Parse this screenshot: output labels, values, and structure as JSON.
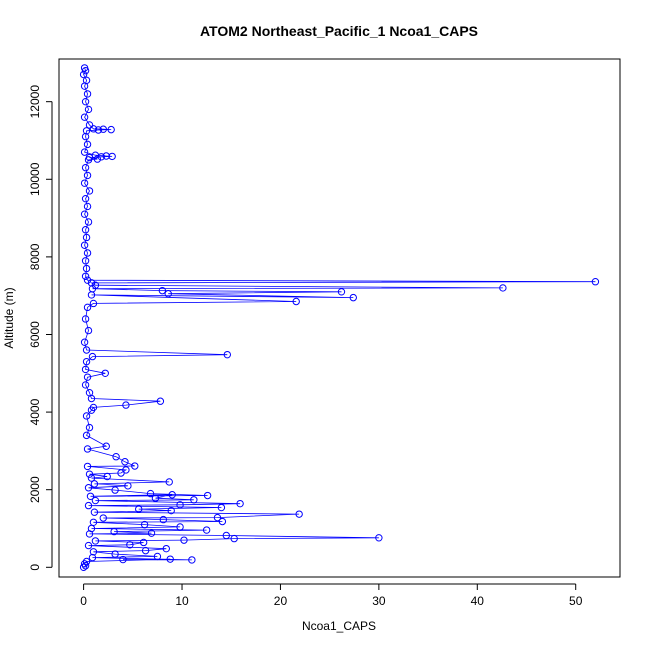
{
  "chart_data": {
    "type": "line",
    "title": "ATOM2 Northeast_Pacific_1 Ncoa1_CAPS",
    "xlabel": "Ncoa1_CAPS",
    "ylabel": "Altitude (m)",
    "xlim": [
      -2.5,
      54.5
    ],
    "ylim": [
      -250,
      13100
    ],
    "x_ticks": [
      0,
      10,
      20,
      30,
      40,
      50
    ],
    "y_ticks": [
      0,
      2000,
      4000,
      6000,
      8000,
      10000,
      12000
    ],
    "grid": false,
    "legend": "none",
    "series_color": "#0000ff",
    "marker": "open-circle",
    "series": [
      {
        "values": [
          [
            0.1,
            12870
          ],
          [
            0.2,
            12800
          ],
          [
            0.0,
            12700
          ],
          [
            0.3,
            12550
          ],
          [
            0.1,
            12400
          ],
          [
            0.4,
            12200
          ],
          [
            0.2,
            12000
          ],
          [
            0.5,
            11800
          ],
          [
            0.1,
            11600
          ],
          [
            0.6,
            11400
          ],
          [
            1.0,
            11300
          ],
          [
            2.0,
            11290
          ],
          [
            2.8,
            11280
          ],
          [
            1.5,
            11270
          ],
          [
            0.3,
            11250
          ],
          [
            0.2,
            11100
          ],
          [
            0.4,
            10900
          ],
          [
            0.1,
            10700
          ],
          [
            1.2,
            10620
          ],
          [
            2.3,
            10600
          ],
          [
            2.9,
            10590
          ],
          [
            1.8,
            10580
          ],
          [
            0.6,
            10560
          ],
          [
            1.4,
            10520
          ],
          [
            0.5,
            10500
          ],
          [
            0.2,
            10300
          ],
          [
            0.4,
            10100
          ],
          [
            0.1,
            9900
          ],
          [
            0.6,
            9700
          ],
          [
            0.2,
            9500
          ],
          [
            0.4,
            9300
          ],
          [
            0.1,
            9100
          ],
          [
            0.5,
            8900
          ],
          [
            0.2,
            8700
          ],
          [
            0.3,
            8500
          ],
          [
            0.1,
            8300
          ],
          [
            0.4,
            8100
          ],
          [
            0.2,
            7900
          ],
          [
            0.3,
            7700
          ],
          [
            0.2,
            7500
          ],
          [
            0.4,
            7400
          ],
          [
            52.0,
            7360
          ],
          [
            0.8,
            7330
          ],
          [
            1.2,
            7270
          ],
          [
            42.6,
            7200
          ],
          [
            0.9,
            7180
          ],
          [
            8.0,
            7130
          ],
          [
            26.2,
            7100
          ],
          [
            8.6,
            7050
          ],
          [
            27.4,
            6950
          ],
          [
            0.8,
            7020
          ],
          [
            21.6,
            6850
          ],
          [
            1.0,
            6800
          ],
          [
            0.4,
            6700
          ],
          [
            0.2,
            6400
          ],
          [
            0.5,
            6100
          ],
          [
            0.1,
            5800
          ],
          [
            0.3,
            5600
          ],
          [
            14.6,
            5480
          ],
          [
            0.9,
            5430
          ],
          [
            0.3,
            5300
          ],
          [
            0.2,
            5100
          ],
          [
            2.2,
            5000
          ],
          [
            0.4,
            4900
          ],
          [
            0.2,
            4700
          ],
          [
            0.6,
            4500
          ],
          [
            0.8,
            4350
          ],
          [
            7.8,
            4280
          ],
          [
            4.3,
            4180
          ],
          [
            1.0,
            4120
          ],
          [
            0.8,
            4050
          ],
          [
            0.3,
            3900
          ],
          [
            0.6,
            3600
          ],
          [
            0.3,
            3400
          ],
          [
            2.3,
            3120
          ],
          [
            0.4,
            3050
          ],
          [
            3.3,
            2850
          ],
          [
            4.2,
            2720
          ],
          [
            5.2,
            2610
          ],
          [
            0.4,
            2600
          ],
          [
            4.3,
            2510
          ],
          [
            3.8,
            2430
          ],
          [
            0.6,
            2400
          ],
          [
            2.4,
            2340
          ],
          [
            0.8,
            2300
          ],
          [
            8.7,
            2200
          ],
          [
            1.1,
            2150
          ],
          [
            4.5,
            2100
          ],
          [
            0.5,
            2050
          ],
          [
            3.2,
            1990
          ],
          [
            6.8,
            1900
          ],
          [
            12.6,
            1850
          ],
          [
            0.7,
            1830
          ],
          [
            9.0,
            1870
          ],
          [
            7.3,
            1780
          ],
          [
            11.2,
            1740
          ],
          [
            1.2,
            1720
          ],
          [
            15.9,
            1640
          ],
          [
            9.8,
            1610
          ],
          [
            0.5,
            1590
          ],
          [
            14.0,
            1540
          ],
          [
            5.6,
            1500
          ],
          [
            8.9,
            1460
          ],
          [
            1.1,
            1420
          ],
          [
            21.9,
            1370
          ],
          [
            13.6,
            1280
          ],
          [
            2.0,
            1270
          ],
          [
            8.1,
            1230
          ],
          [
            14.1,
            1180
          ],
          [
            1.0,
            1160
          ],
          [
            6.2,
            1100
          ],
          [
            9.8,
            1040
          ],
          [
            0.8,
            1000
          ],
          [
            12.5,
            960
          ],
          [
            3.1,
            920
          ],
          [
            6.9,
            880
          ],
          [
            0.6,
            860
          ],
          [
            14.5,
            820
          ],
          [
            30.0,
            760
          ],
          [
            15.3,
            740
          ],
          [
            10.2,
            700
          ],
          [
            1.2,
            680
          ],
          [
            6.1,
            640
          ],
          [
            4.7,
            580
          ],
          [
            0.5,
            560
          ],
          [
            8.4,
            480
          ],
          [
            6.3,
            430
          ],
          [
            1.0,
            400
          ],
          [
            3.2,
            340
          ],
          [
            7.5,
            280
          ],
          [
            0.9,
            250
          ],
          [
            11.0,
            190
          ],
          [
            4.0,
            200
          ],
          [
            8.8,
            210
          ],
          [
            0.3,
            150
          ],
          [
            0.1,
            90
          ],
          [
            0.2,
            40
          ],
          [
            0.0,
            0
          ]
        ]
      }
    ]
  }
}
